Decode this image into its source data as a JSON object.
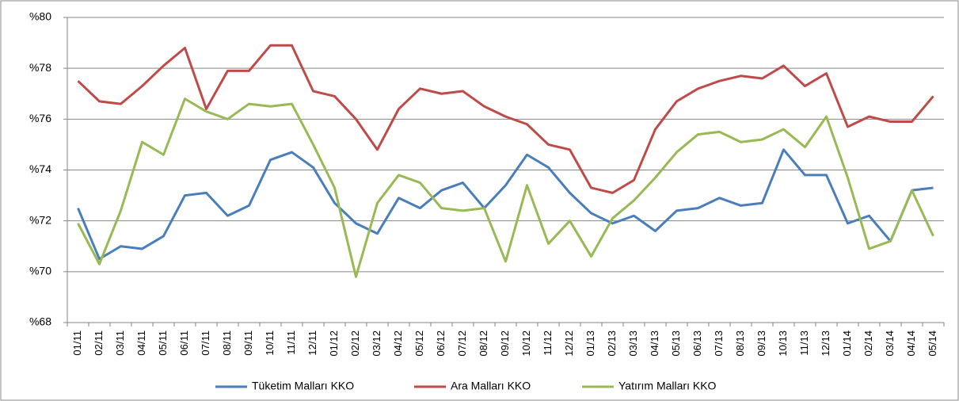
{
  "chart_data": {
    "type": "line",
    "categories": [
      "01/11",
      "02/11",
      "03/11",
      "04/11",
      "05/11",
      "06/11",
      "07/11",
      "08/11",
      "09/11",
      "10/11",
      "11/11",
      "12/11",
      "01/12",
      "02/12",
      "03/12",
      "04/12",
      "05/12",
      "06/12",
      "07/12",
      "08/12",
      "09/12",
      "10/12",
      "11/12",
      "12/12",
      "01/13",
      "02/13",
      "03/13",
      "04/13",
      "05/13",
      "06/13",
      "07/13",
      "08/13",
      "09/13",
      "10/13",
      "11/13",
      "12/13",
      "01/14",
      "02/14",
      "03/14",
      "04/14",
      "05/14"
    ],
    "series": [
      {
        "name": "Tüketim Malları KKO",
        "color": "#4a7ebb",
        "values": [
          72.5,
          70.5,
          71.0,
          70.9,
          71.4,
          73.0,
          73.1,
          72.2,
          72.6,
          74.4,
          74.7,
          74.1,
          72.7,
          71.9,
          71.5,
          72.9,
          72.5,
          73.2,
          73.5,
          72.5,
          73.4,
          74.6,
          74.1,
          73.1,
          72.3,
          71.9,
          72.2,
          71.6,
          72.4,
          72.5,
          72.9,
          72.6,
          72.7,
          74.8,
          73.8,
          73.8,
          71.9,
          72.2,
          71.2,
          73.2,
          73.3
        ]
      },
      {
        "name": "Ara Malları KKO",
        "color": "#be4b48",
        "values": [
          77.5,
          76.7,
          76.6,
          77.3,
          78.1,
          78.8,
          76.4,
          77.9,
          77.9,
          78.9,
          78.9,
          77.1,
          76.9,
          76.0,
          74.8,
          76.4,
          77.2,
          77.0,
          77.1,
          76.5,
          76.1,
          75.8,
          75.0,
          74.8,
          73.3,
          73.1,
          73.6,
          75.6,
          76.7,
          77.2,
          77.5,
          77.7,
          77.6,
          78.1,
          77.3,
          77.8,
          75.7,
          76.1,
          75.9,
          75.9,
          76.9
        ]
      },
      {
        "name": "Yatırım Malları KKO",
        "color": "#98b954",
        "values": [
          71.9,
          70.3,
          72.4,
          75.1,
          74.6,
          76.8,
          76.3,
          76.0,
          76.6,
          76.5,
          76.6,
          75.0,
          73.3,
          69.8,
          72.7,
          73.8,
          73.5,
          72.5,
          72.4,
          72.5,
          70.4,
          73.4,
          71.1,
          72.0,
          70.6,
          72.1,
          72.8,
          73.7,
          74.7,
          75.4,
          75.5,
          75.1,
          75.2,
          75.6,
          74.9,
          76.1,
          73.7,
          70.9,
          71.2,
          73.2,
          71.4
        ]
      }
    ],
    "ylim": [
      68,
      80
    ],
    "yticks": [
      {
        "value": 68,
        "label": "%68"
      },
      {
        "value": 70,
        "label": "%70"
      },
      {
        "value": 72,
        "label": "%72"
      },
      {
        "value": 74,
        "label": "%74"
      },
      {
        "value": 76,
        "label": "%76"
      },
      {
        "value": 78,
        "label": "%78"
      },
      {
        "value": 80,
        "label": "%80"
      }
    ],
    "grid": true,
    "legend": "bottom"
  }
}
